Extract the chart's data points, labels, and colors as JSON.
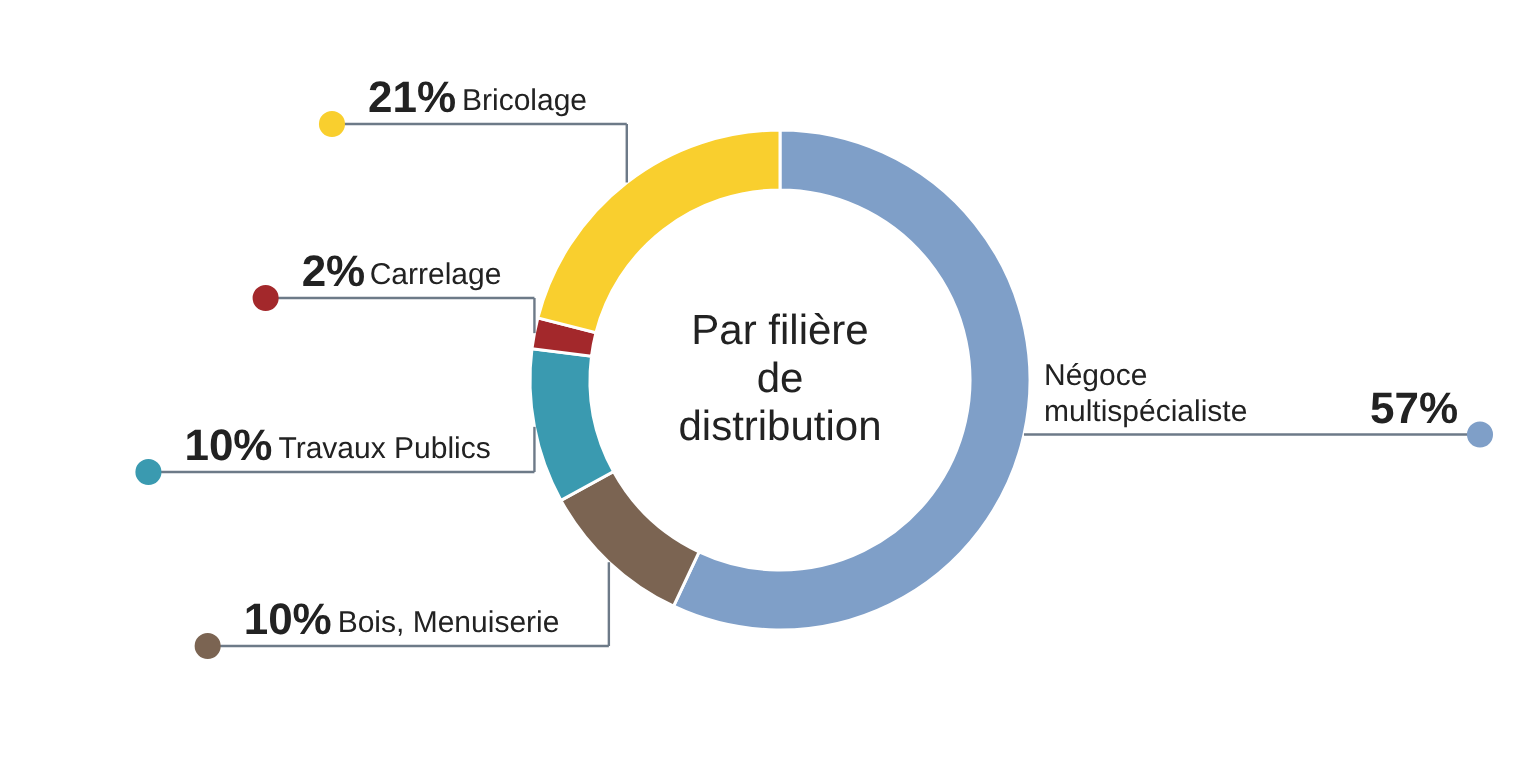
{
  "chart_data": {
    "type": "donut",
    "title": "Par filière de distribution",
    "categories": [
      "Négoce multispécialiste",
      "Bois, Menuiserie",
      "Travaux Publics",
      "Carrelage",
      "Bricolage"
    ],
    "values": [
      57,
      10,
      10,
      2,
      21
    ],
    "colors": [
      "#7f9fc8",
      "#7b6452",
      "#3a9ab0",
      "#a3282b",
      "#f9cf2e"
    ],
    "value_labels": [
      "57%",
      "10%",
      "10%",
      "2%",
      "21%"
    ]
  }
}
